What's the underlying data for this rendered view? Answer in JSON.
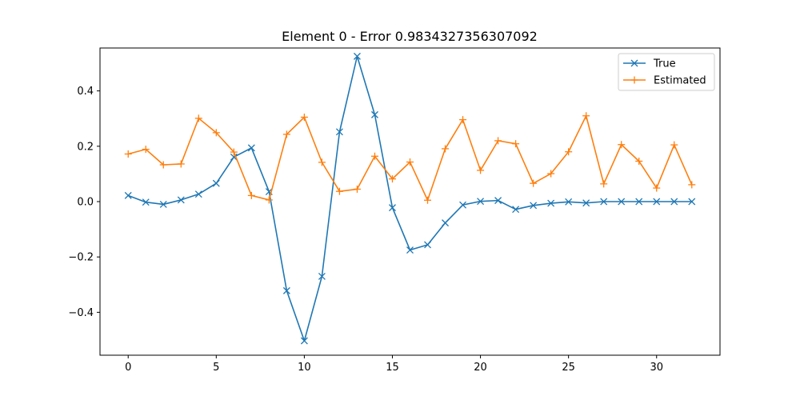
{
  "chart_data": {
    "type": "line",
    "title": "Element 0 - Error 0.9834327356307092",
    "xlabel": "",
    "ylabel": "",
    "xlim": [
      -1.6,
      33.6
    ],
    "ylim": [
      -0.555,
      0.555
    ],
    "x_ticks": [
      0,
      5,
      10,
      15,
      20,
      25,
      30
    ],
    "x_tick_labels": [
      "0",
      "5",
      "10",
      "15",
      "20",
      "25",
      "30"
    ],
    "y_ticks": [
      -0.4,
      -0.2,
      0.0,
      0.2,
      0.4
    ],
    "y_tick_labels": [
      "−0.4",
      "−0.2",
      "0.0",
      "0.2",
      "0.4"
    ],
    "grid": false,
    "legend_position": "top-right",
    "x": [
      0,
      1,
      2,
      3,
      4,
      5,
      6,
      7,
      8,
      9,
      10,
      11,
      12,
      13,
      14,
      15,
      16,
      17,
      18,
      19,
      20,
      21,
      22,
      23,
      24,
      25,
      26,
      27,
      28,
      29,
      30,
      31,
      32
    ],
    "series": [
      {
        "name": "True",
        "color": "#1f77b4",
        "marker": "x",
        "values": [
          0.022,
          -0.002,
          -0.01,
          0.006,
          0.027,
          0.066,
          0.161,
          0.194,
          0.036,
          -0.322,
          -0.503,
          -0.27,
          0.252,
          0.525,
          0.314,
          -0.022,
          -0.175,
          -0.156,
          -0.077,
          -0.012,
          0.001,
          0.004,
          -0.028,
          -0.014,
          -0.006,
          -0.001,
          -0.005,
          0.0,
          0.0,
          0.0,
          0.0,
          0.0,
          0.0
        ]
      },
      {
        "name": "Estimated",
        "color": "#ff7f0e",
        "marker": "+",
        "values": [
          0.172,
          0.189,
          0.133,
          0.136,
          0.301,
          0.249,
          0.179,
          0.022,
          0.006,
          0.243,
          0.305,
          0.142,
          0.037,
          0.045,
          0.164,
          0.082,
          0.143,
          0.005,
          0.191,
          0.296,
          0.113,
          0.22,
          0.209,
          0.066,
          0.101,
          0.18,
          0.31,
          0.064,
          0.206,
          0.146,
          0.049,
          0.205,
          0.061
        ]
      }
    ]
  }
}
